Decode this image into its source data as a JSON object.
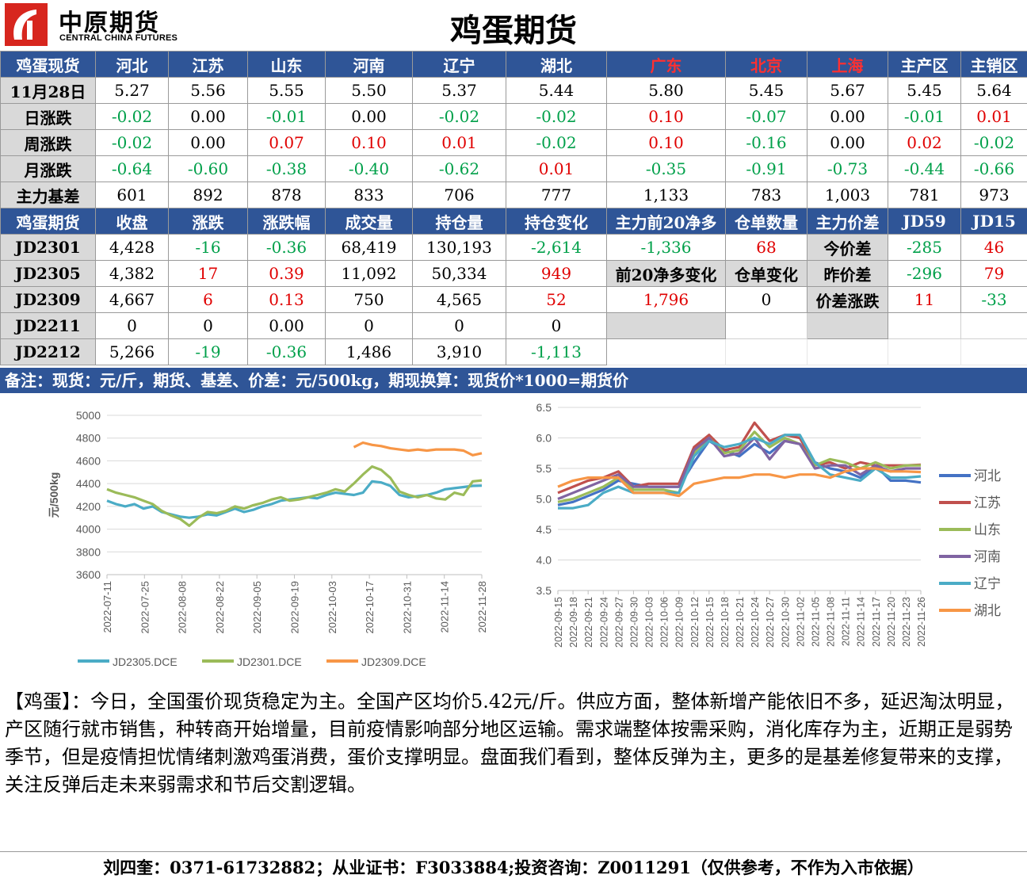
{
  "header": {
    "logo_cn": "中原期货",
    "logo_en": "CENTRAL CHINA FUTURES",
    "title": "鸡蛋期货"
  },
  "spot": {
    "head": [
      "鸡蛋现货",
      "河北",
      "江苏",
      "山东",
      "河南",
      "辽宁",
      "湖北",
      "广东",
      "北京",
      "上海",
      "主产区",
      "主销区"
    ],
    "rows": [
      {
        "label": "11月28日",
        "cells": [
          [
            "5.27",
            ""
          ],
          [
            "5.56",
            ""
          ],
          [
            "5.55",
            ""
          ],
          [
            "5.50",
            ""
          ],
          [
            "5.37",
            ""
          ],
          [
            "5.44",
            ""
          ],
          [
            "5.80",
            ""
          ],
          [
            "5.45",
            ""
          ],
          [
            "5.67",
            ""
          ],
          [
            "5.45",
            ""
          ],
          [
            "5.64",
            ""
          ]
        ]
      },
      {
        "label": "日涨跌",
        "cells": [
          [
            "-0.02",
            "neg"
          ],
          [
            "0.00",
            ""
          ],
          [
            "-0.01",
            "neg"
          ],
          [
            "0.00",
            ""
          ],
          [
            "-0.02",
            "neg"
          ],
          [
            "-0.02",
            "neg"
          ],
          [
            "0.10",
            "pos"
          ],
          [
            "-0.07",
            "neg"
          ],
          [
            "0.00",
            ""
          ],
          [
            "-0.01",
            "neg"
          ],
          [
            "0.01",
            "pos"
          ]
        ]
      },
      {
        "label": "周涨跌",
        "cells": [
          [
            "-0.02",
            "neg"
          ],
          [
            "0.00",
            ""
          ],
          [
            "0.07",
            "pos"
          ],
          [
            "0.10",
            "pos"
          ],
          [
            "0.01",
            "pos"
          ],
          [
            "-0.02",
            "neg"
          ],
          [
            "0.10",
            "pos"
          ],
          [
            "-0.16",
            "neg"
          ],
          [
            "0.00",
            ""
          ],
          [
            "0.02",
            "pos"
          ],
          [
            "-0.02",
            "neg"
          ]
        ]
      },
      {
        "label": "月涨跌",
        "cells": [
          [
            "-0.64",
            "neg"
          ],
          [
            "-0.60",
            "neg"
          ],
          [
            "-0.38",
            "neg"
          ],
          [
            "-0.40",
            "neg"
          ],
          [
            "-0.62",
            "neg"
          ],
          [
            "0.01",
            "pos"
          ],
          [
            "-0.35",
            "neg"
          ],
          [
            "-0.91",
            "neg"
          ],
          [
            "-0.73",
            "neg"
          ],
          [
            "-0.44",
            "neg"
          ],
          [
            "-0.66",
            "neg"
          ]
        ]
      },
      {
        "label": "主力基差",
        "cells": [
          [
            "601",
            ""
          ],
          [
            "892",
            ""
          ],
          [
            "878",
            ""
          ],
          [
            "833",
            ""
          ],
          [
            "706",
            ""
          ],
          [
            "777",
            ""
          ],
          [
            "1,133",
            ""
          ],
          [
            "783",
            ""
          ],
          [
            "1,003",
            ""
          ],
          [
            "781",
            ""
          ],
          [
            "973",
            ""
          ]
        ]
      }
    ]
  },
  "futures": {
    "head": [
      "鸡蛋期货",
      "收盘",
      "涨跌",
      "涨跌幅",
      "成交量",
      "持仓量",
      "持仓变化",
      "主力前20净多",
      "仓单数量",
      "主力价差",
      "JD59",
      "JD15"
    ],
    "rows": [
      [
        "JD2301",
        "4,428",
        "-16",
        "-0.36",
        "68,419",
        "130,193",
        "-2,614",
        "-1,336",
        "68",
        "今价差",
        "-285",
        "46"
      ],
      [
        "JD2305",
        "4,382",
        "17",
        "0.39",
        "11,092",
        "50,334",
        "949",
        "前20净多变化",
        "仓单变化",
        "昨价差",
        "-296",
        "79"
      ],
      [
        "JD2309",
        "4,667",
        "6",
        "0.13",
        "750",
        "4,565",
        "52",
        "1,796",
        "0",
        "价差涨跌",
        "11",
        "-33"
      ],
      [
        "JD2211",
        "0",
        "0",
        "0.00",
        "0",
        "0",
        "0",
        "",
        "",
        "",
        "",
        ""
      ],
      [
        "JD2212",
        "5,266",
        "-19",
        "-0.36",
        "1,486",
        "3,910",
        "-1,113",
        "",
        "",
        "",
        "",
        ""
      ]
    ]
  },
  "note": "备注：现货：元/斤，期货、基差、价差：元/500kg，期现换算：现货价*1000=期货价",
  "chart_data": [
    {
      "type": "line",
      "ylabel": "元/500kg",
      "ylim": [
        3600,
        5000
      ],
      "yticks": [
        3600,
        3800,
        4000,
        4200,
        4400,
        4600,
        4800,
        5000
      ],
      "x_tick_labels": [
        "2022-07-11",
        "2022-07-25",
        "2022-08-08",
        "2022-08-22",
        "2022-09-05",
        "2022-09-19",
        "2022-10-03",
        "2022-10-17",
        "2022-10-31",
        "2022-11-14",
        "2022-11-28"
      ],
      "grid": true,
      "legend": "bottom",
      "series": [
        {
          "name": "JD2305.DCE",
          "color": "#4bacc6",
          "values": [
            4250,
            4220,
            4200,
            4220,
            4180,
            4200,
            4150,
            4130,
            4110,
            4100,
            4110,
            4130,
            4120,
            4150,
            4180,
            4150,
            4170,
            4200,
            4220,
            4250,
            4260,
            4270,
            4280,
            4270,
            4300,
            4320,
            4310,
            4300,
            4320,
            4420,
            4410,
            4380,
            4300,
            4280,
            4290,
            4300,
            4320,
            4350,
            4360,
            4370,
            4380,
            4382
          ]
        },
        {
          "name": "JD2301.DCE",
          "color": "#9bbb59",
          "values": [
            4350,
            4320,
            4300,
            4280,
            4250,
            4220,
            4160,
            4120,
            4090,
            4030,
            4100,
            4150,
            4140,
            4160,
            4200,
            4180,
            4210,
            4230,
            4260,
            4280,
            4250,
            4260,
            4280,
            4300,
            4320,
            4350,
            4330,
            4400,
            4480,
            4550,
            4520,
            4450,
            4330,
            4300,
            4280,
            4300,
            4270,
            4260,
            4320,
            4300,
            4420,
            4428
          ]
        },
        {
          "name": "JD2309.DCE",
          "color": "#f79646",
          "values": [
            null,
            null,
            null,
            null,
            null,
            null,
            null,
            null,
            null,
            null,
            null,
            null,
            null,
            null,
            null,
            null,
            null,
            null,
            null,
            null,
            null,
            null,
            null,
            null,
            null,
            null,
            null,
            4720,
            4760,
            4740,
            4730,
            4710,
            4700,
            4690,
            4700,
            4690,
            4700,
            4700,
            4700,
            4690,
            4650,
            4667
          ]
        }
      ]
    },
    {
      "type": "line",
      "ylim": [
        3.5,
        6.5
      ],
      "yticks": [
        "3.5",
        "4.0",
        "4.5",
        "5.0",
        "5.5",
        "6.0",
        "6.5"
      ],
      "x_tick_labels": [
        "2022-09-15",
        "2022-09-18",
        "2022-09-21",
        "2022-09-24",
        "2022-09-27",
        "2022-09-30",
        "2022-10-03",
        "2022-10-06",
        "2022-10-09",
        "2022-10-12",
        "2022-10-15",
        "2022-10-18",
        "2022-10-21",
        "2022-10-24",
        "2022-10-27",
        "2022-10-30",
        "2022-11-02",
        "2022-11-05",
        "2022-11-08",
        "2022-11-11",
        "2022-11-14",
        "2022-11-17",
        "2022-11-20",
        "2022-11-23",
        "2022-11-26"
      ],
      "grid": true,
      "legend": "right",
      "series": [
        {
          "name": "河北",
          "color": "#4472c4",
          "values": [
            4.9,
            4.95,
            5.05,
            5.15,
            5.3,
            5.25,
            5.2,
            5.2,
            5.2,
            5.6,
            5.95,
            5.8,
            5.7,
            5.9,
            5.75,
            5.95,
            5.9,
            5.6,
            5.5,
            5.45,
            5.35,
            5.55,
            5.3,
            5.3,
            5.27
          ]
        },
        {
          "name": "江苏",
          "color": "#c0504d",
          "values": [
            5.1,
            5.2,
            5.3,
            5.35,
            5.45,
            5.2,
            5.25,
            5.25,
            5.25,
            5.85,
            6.05,
            5.8,
            5.85,
            6.25,
            5.95,
            6.05,
            6.0,
            5.55,
            5.6,
            5.5,
            5.6,
            5.55,
            5.55,
            5.55,
            5.56
          ]
        },
        {
          "name": "山东",
          "color": "#9bbb59",
          "values": [
            4.95,
            5.0,
            5.1,
            5.2,
            5.35,
            5.15,
            5.15,
            5.15,
            5.1,
            5.75,
            6.0,
            5.75,
            5.8,
            6.1,
            5.85,
            6.0,
            5.9,
            5.55,
            5.65,
            5.6,
            5.5,
            5.6,
            5.5,
            5.55,
            5.55
          ]
        },
        {
          "name": "河南",
          "color": "#8064a2",
          "values": [
            5.0,
            5.1,
            5.2,
            5.3,
            5.4,
            5.2,
            5.2,
            5.2,
            5.2,
            5.8,
            6.0,
            5.7,
            5.75,
            6.0,
            5.65,
            5.95,
            5.9,
            5.5,
            5.55,
            5.55,
            5.4,
            5.55,
            5.45,
            5.5,
            5.5
          ]
        },
        {
          "name": "辽宁",
          "color": "#4bacc6",
          "values": [
            4.85,
            4.85,
            4.9,
            5.1,
            5.2,
            5.1,
            5.1,
            5.1,
            5.1,
            5.7,
            5.95,
            5.85,
            5.9,
            6.0,
            5.9,
            6.05,
            6.05,
            5.6,
            5.4,
            5.35,
            5.3,
            5.5,
            5.35,
            5.35,
            5.37
          ]
        },
        {
          "name": "湖北",
          "color": "#f79646",
          "values": [
            5.2,
            5.3,
            5.35,
            5.35,
            5.35,
            5.1,
            5.1,
            5.1,
            5.05,
            5.25,
            5.3,
            5.35,
            5.35,
            5.4,
            5.4,
            5.35,
            5.4,
            5.4,
            5.35,
            5.45,
            5.5,
            5.5,
            5.45,
            5.45,
            5.44
          ]
        }
      ]
    }
  ],
  "analysis": "【鸡蛋】：今日，全国蛋价现货稳定为主。全国产区均价5.42元/斤。供应方面，整体新增产能依旧不多，延迟淘汰明显，产区随行就市销售，种转商开始增量，目前疫情影响部分地区运输。需求端整体按需采购，消化库存为主，近期正是弱势季节，但是疫情担忧情绪刺激鸡蛋消费，蛋价支撑明显。盘面我们看到，整体反弹为主，更多的是基差修复带来的支撑，关注反弹后走未来弱需求和节后交割逻辑。",
  "footer": "刘四奎：0371-61732882；从业证书：F3033884;投资咨询：Z0011291（仅供参考，不作为入市依据）"
}
